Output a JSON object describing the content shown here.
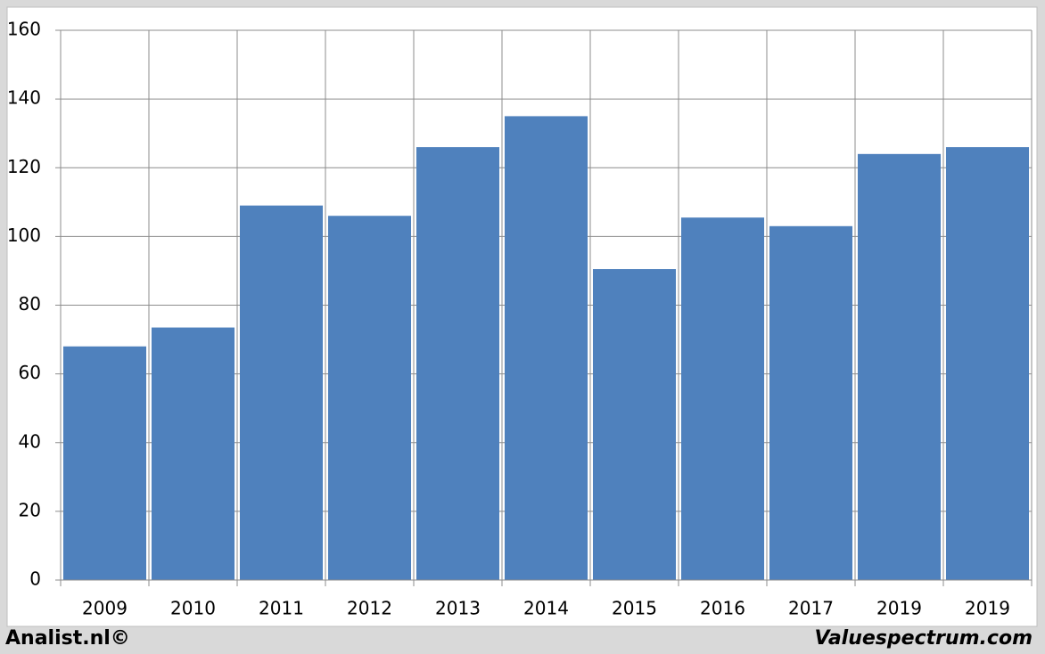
{
  "chart_data": {
    "type": "bar",
    "categories": [
      "2009",
      "2010",
      "2011",
      "2012",
      "2013",
      "2014",
      "2015",
      "2016",
      "2017",
      "2019",
      "2019"
    ],
    "values": [
      68,
      73.5,
      109,
      106,
      126,
      135,
      90.5,
      105.5,
      103,
      124,
      126
    ],
    "color": "#4f81bd",
    "ylim": [
      0,
      160
    ],
    "yticks": [
      0,
      20,
      40,
      60,
      80,
      100,
      120,
      140,
      160
    ],
    "grid": true,
    "footer_left": "Analist.nl©",
    "footer_right": "Valuespectrum.com"
  }
}
